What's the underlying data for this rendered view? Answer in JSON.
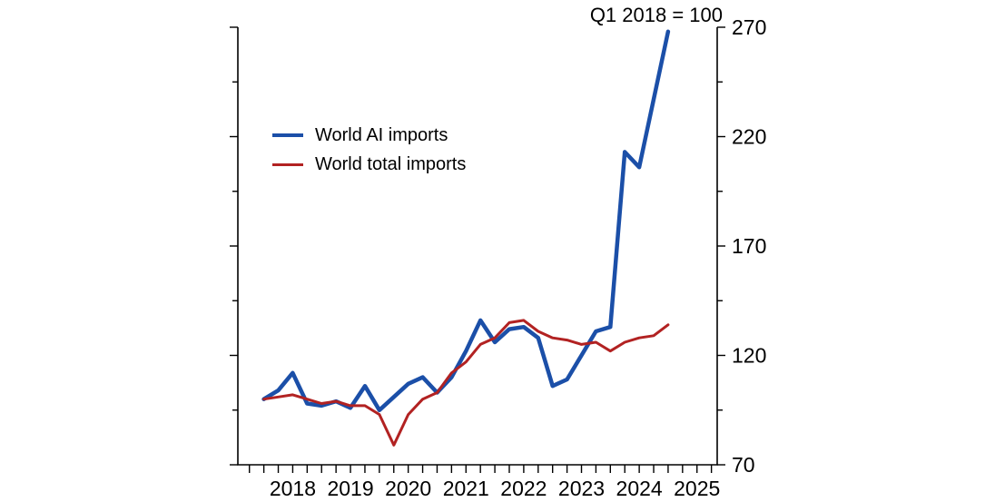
{
  "chart_data": {
    "type": "line",
    "title": "Q1 2018 = 100",
    "x": [
      2018.0,
      2018.25,
      2018.5,
      2018.75,
      2019.0,
      2019.25,
      2019.5,
      2019.75,
      2020.0,
      2020.25,
      2020.5,
      2020.75,
      2021.0,
      2021.25,
      2021.5,
      2021.75,
      2022.0,
      2022.25,
      2022.5,
      2022.75,
      2023.0,
      2023.25,
      2023.5,
      2023.75,
      2024.0,
      2024.25,
      2024.5,
      2024.75,
      2025.0
    ],
    "series": [
      {
        "name": "World AI imports",
        "color": "#1b4fa8",
        "line_width": 4.5,
        "values": [
          100,
          104,
          112,
          98,
          97,
          99,
          96,
          106,
          95,
          101,
          107,
          110,
          103,
          110,
          122,
          136,
          126,
          132,
          133,
          128,
          106,
          109,
          120,
          131,
          133,
          213,
          206,
          237,
          268
        ]
      },
      {
        "name": "World total imports",
        "color": "#b22222",
        "line_width": 3,
        "values": [
          100,
          101,
          102,
          100,
          98,
          99,
          97,
          97,
          93,
          79,
          93,
          100,
          103,
          112,
          117,
          125,
          128,
          135,
          136,
          131,
          128,
          127,
          125,
          126,
          122,
          126,
          128,
          129,
          134
        ]
      }
    ],
    "xlim": [
      2017.55,
      2025.85
    ],
    "ylim": [
      70,
      270
    ],
    "y_ticks_labeled": [
      70,
      120,
      170,
      220,
      270
    ],
    "y_ticks_minor": [
      95,
      145,
      195,
      245
    ],
    "x_tick_step": 0.25,
    "x_year_labels": [
      "2018",
      "2019",
      "2020",
      "2021",
      "2022",
      "2023",
      "2024",
      "2025"
    ],
    "grid": false,
    "axis_labels_side": "right",
    "legend_position": "upper-left-inside"
  }
}
